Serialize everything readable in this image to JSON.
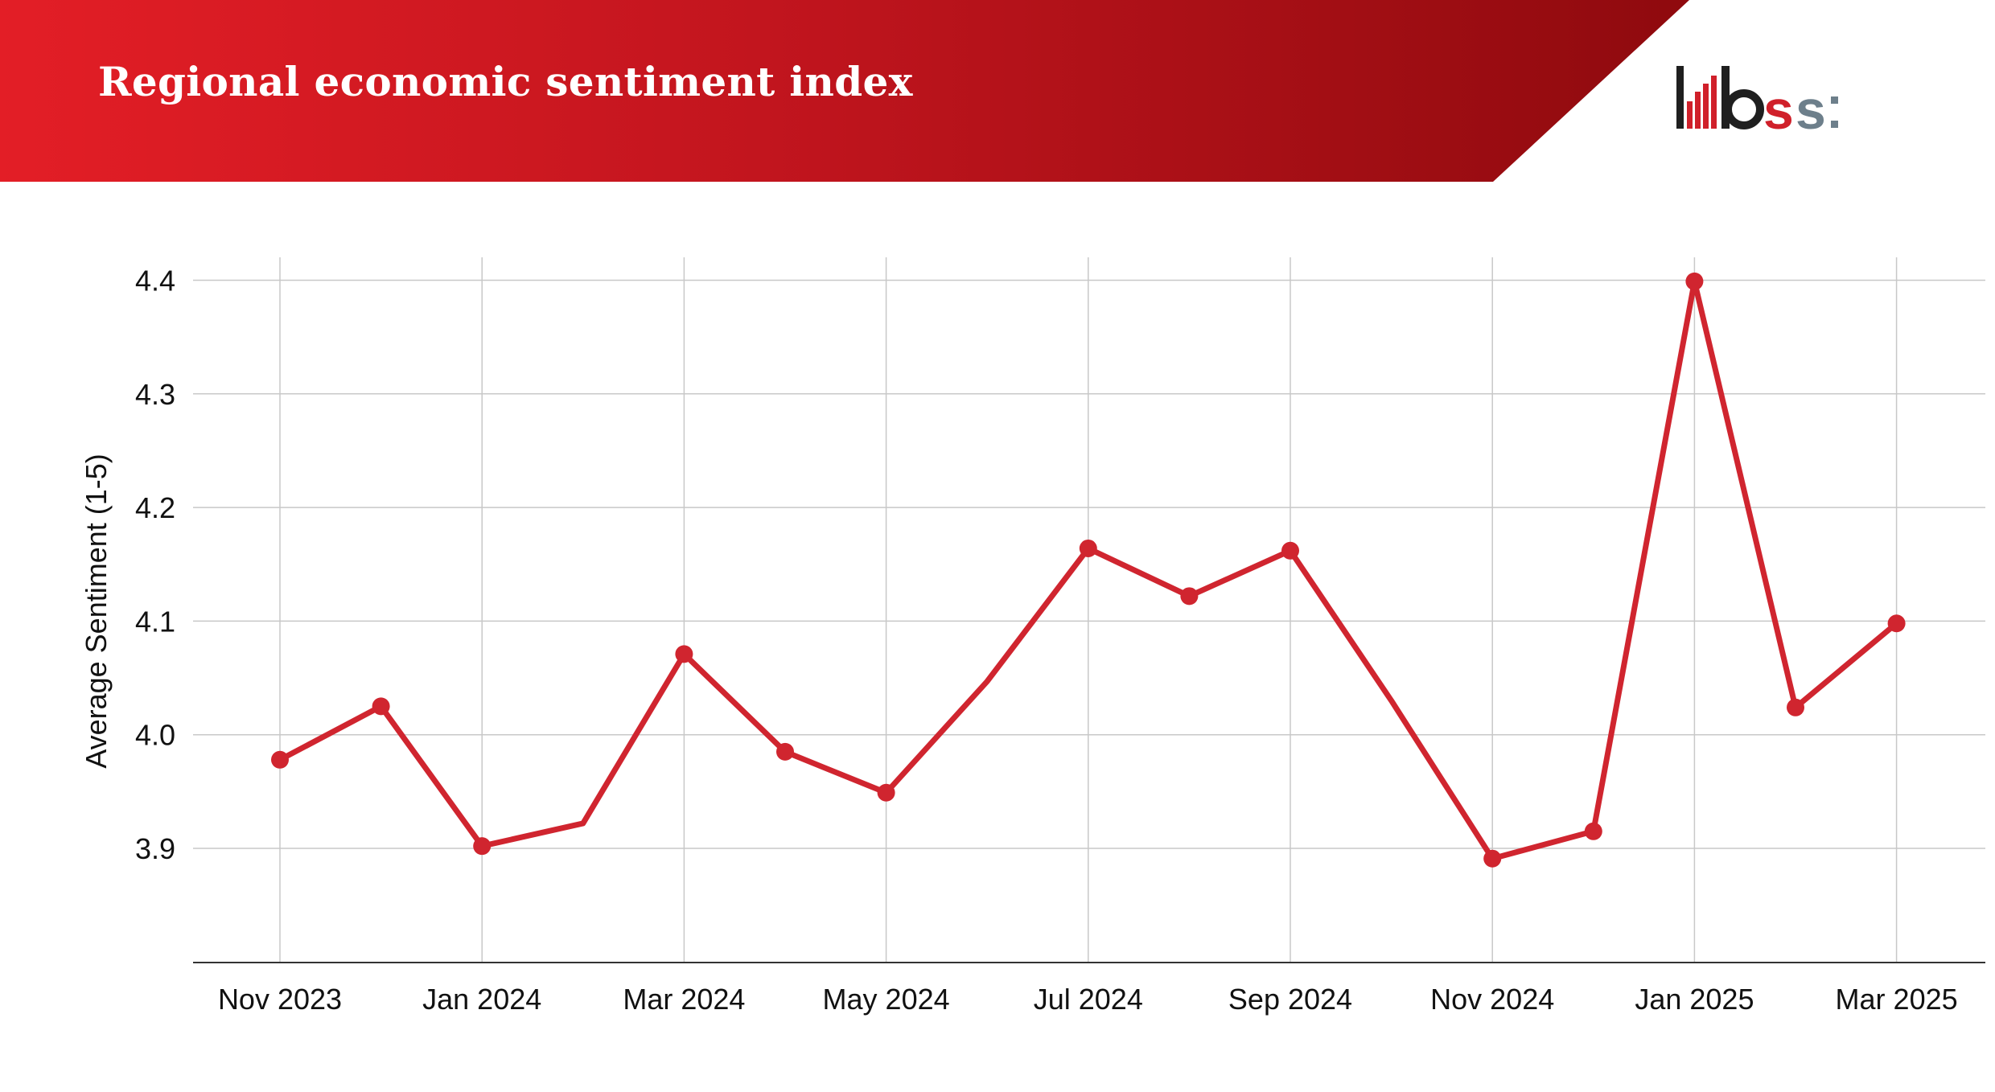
{
  "header": {
    "title": "Regional economic sentiment index",
    "logo": "bss:"
  },
  "colors": {
    "brand_red": "#d0202a",
    "line": "#d0252f",
    "grid": "#c8c8c8",
    "logo_dark": "#1f1f1f",
    "logo_red": "#d0202a",
    "logo_grey": "#6d7f8b"
  },
  "chart_data": {
    "type": "line",
    "title": "Regional economic sentiment index",
    "xlabel": "",
    "ylabel": "Average Sentiment (1-5)",
    "x": [
      "2023-11",
      "2023-12",
      "2024-01",
      "2024-02",
      "2024-03",
      "2024-04",
      "2024-05",
      "2024-06",
      "2024-07",
      "2024-08",
      "2024-09",
      "2024-10",
      "2024-11",
      "2024-12",
      "2025-01",
      "2025-02",
      "2025-03"
    ],
    "series": [
      {
        "values": [
          3.978,
          4.025,
          3.902,
          3.922,
          4.071,
          3.985,
          3.949,
          4.047,
          4.164,
          4.122,
          4.162,
          4.03,
          3.891,
          3.915,
          4.399,
          4.024,
          4.098
        ],
        "markers": [
          true,
          true,
          true,
          false,
          true,
          true,
          true,
          false,
          true,
          true,
          true,
          false,
          true,
          true,
          true,
          true,
          true
        ]
      }
    ],
    "x_ticks": [
      "Nov 2023",
      "Jan 2024",
      "Mar 2024",
      "May 2024",
      "Jul 2024",
      "Sep 2024",
      "Nov 2024",
      "Jan 2025",
      "Mar 2025"
    ],
    "x_tick_index": [
      0,
      2,
      4,
      6,
      8,
      10,
      12,
      14,
      16
    ],
    "y_ticks": [
      "3.9",
      "4.0",
      "4.1",
      "4.2",
      "4.3",
      "4.4"
    ],
    "ylim": [
      3.8,
      4.42
    ],
    "grid": true,
    "legend": "none"
  }
}
